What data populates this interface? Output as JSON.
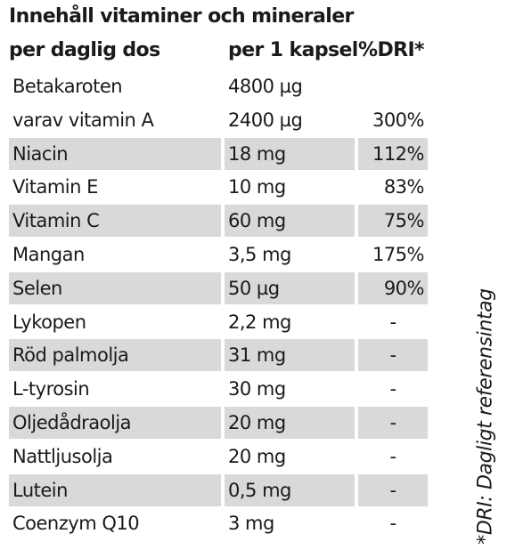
{
  "title": "Innehåll vitaminer och mineraler",
  "header": {
    "col1": "per daglig dos",
    "col2": "per 1 kapsel",
    "col3": "%DRI*"
  },
  "rows": [
    {
      "name": "Betakaroten",
      "amount": "4800 µg",
      "dri": "",
      "shaded": false
    },
    {
      "name": "varav vitamin A",
      "amount": "2400 µg",
      "dri": "300%",
      "shaded": false
    },
    {
      "name": "Niacin",
      "amount": "18 mg",
      "dri": "112%",
      "shaded": true
    },
    {
      "name": "Vitamin E",
      "amount": "10 mg",
      "dri": "83%",
      "shaded": false
    },
    {
      "name": "Vitamin C",
      "amount": "60 mg",
      "dri": "75%",
      "shaded": true
    },
    {
      "name": "Mangan",
      "amount": "3,5 mg",
      "dri": "175%",
      "shaded": false
    },
    {
      "name": "Selen",
      "amount": "50 µg",
      "dri": "90%",
      "shaded": true
    },
    {
      "name": "Lykopen",
      "amount": "2,2 mg",
      "dri": "-",
      "shaded": false
    },
    {
      "name": "Röd palmolja",
      "amount": "31 mg",
      "dri": "-",
      "shaded": true
    },
    {
      "name": "L-tyrosin",
      "amount": "30 mg",
      "dri": "-",
      "shaded": false
    },
    {
      "name": "Oljedådraolja",
      "amount": "20 mg",
      "dri": "-",
      "shaded": true
    },
    {
      "name": "Nattljusolja",
      "amount": "20 mg",
      "dri": "-",
      "shaded": false
    },
    {
      "name": "Lutein",
      "amount": "0,5 mg",
      "dri": "-",
      "shaded": true
    },
    {
      "name": "Coenzym Q10",
      "amount": "3 mg",
      "dri": "-",
      "shaded": false
    }
  ],
  "footnote": "*DRI: Dagligt referensintag",
  "colors": {
    "shaded_row": "#d9d9d9",
    "text": "#1a1a1a"
  }
}
